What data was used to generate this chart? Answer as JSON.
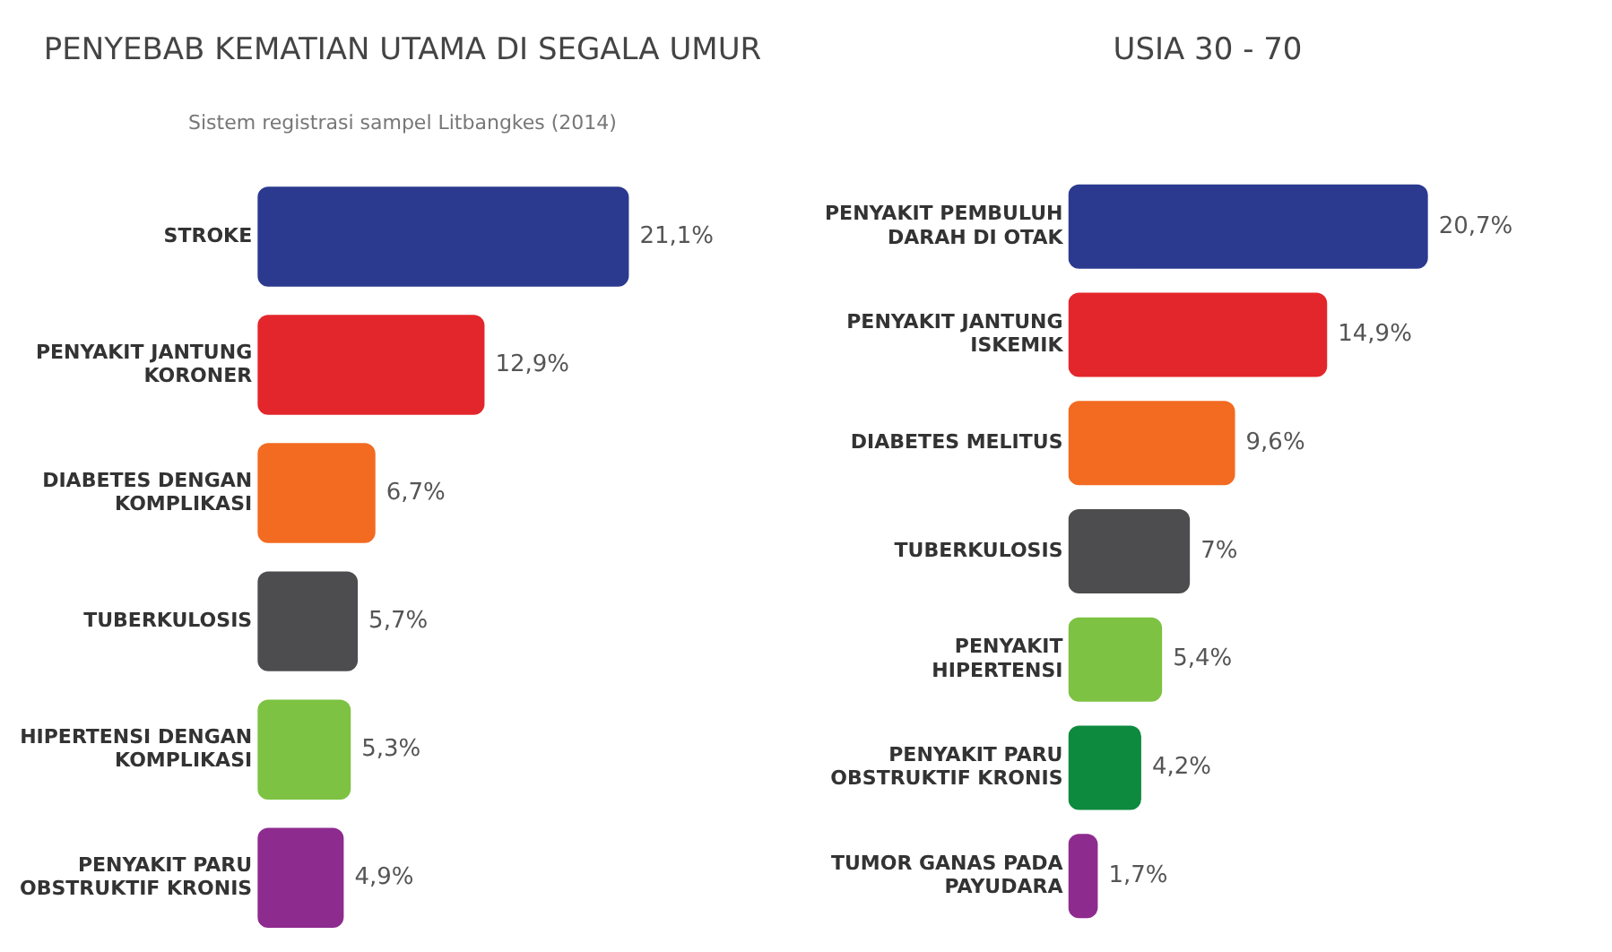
{
  "chart_data": [
    {
      "type": "bar",
      "orientation": "horizontal",
      "title": "PENYEBAB KEMATIAN UTAMA DI SEGALA UMUR",
      "subtitle": "Sistem registrasi sampel Litbangkes (2014)",
      "categories": [
        "STROKE",
        "PENYAKIT JANTUNG KORONER",
        "DIABETES DENGAN KOMPLIKASI",
        "TUBERKULOSIS",
        "HIPERTENSI DENGAN KOMPLIKASI",
        "PENYAKIT PARU OBSTRUKTIF KRONIS"
      ],
      "values": [
        21.1,
        12.9,
        6.7,
        5.7,
        5.3,
        4.9
      ],
      "value_labels": [
        "21,1%",
        "12,9%",
        "6,7%",
        "5,7%",
        "5,3%",
        "4,9%"
      ],
      "colors": [
        "#2b3a8f",
        "#e3262b",
        "#f26b21",
        "#4d4d4f",
        "#7dc242",
        "#8e2b8f"
      ],
      "tick_labels": "y",
      "grid": false,
      "legend": false
    },
    {
      "type": "bar",
      "orientation": "horizontal",
      "title": "USIA 30 - 70",
      "categories": [
        "PENYAKIT PEMBULUH DARAH DI OTAK",
        "PENYAKIT JANTUNG ISKEMIK",
        "DIABETES MELITUS",
        "TUBERKULOSIS",
        "PENYAKIT HIPERTENSI",
        "PENYAKIT PARU OBSTRUKTIF KRONIS",
        "TUMOR GANAS PADA PAYUDARA"
      ],
      "values": [
        20.7,
        14.9,
        9.6,
        7,
        5.4,
        4.2,
        1.7
      ],
      "value_labels": [
        "20,7%",
        "14,9%",
        "9,6%",
        "7%",
        "5,4%",
        "4,2%",
        "1,7%"
      ],
      "colors": [
        "#2b3a8f",
        "#e3262b",
        "#f26b21",
        "#4d4d4f",
        "#7dc242",
        "#0d8a3e",
        "#8e2b8f"
      ],
      "tick_labels": "y",
      "grid": false,
      "legend": false
    }
  ]
}
